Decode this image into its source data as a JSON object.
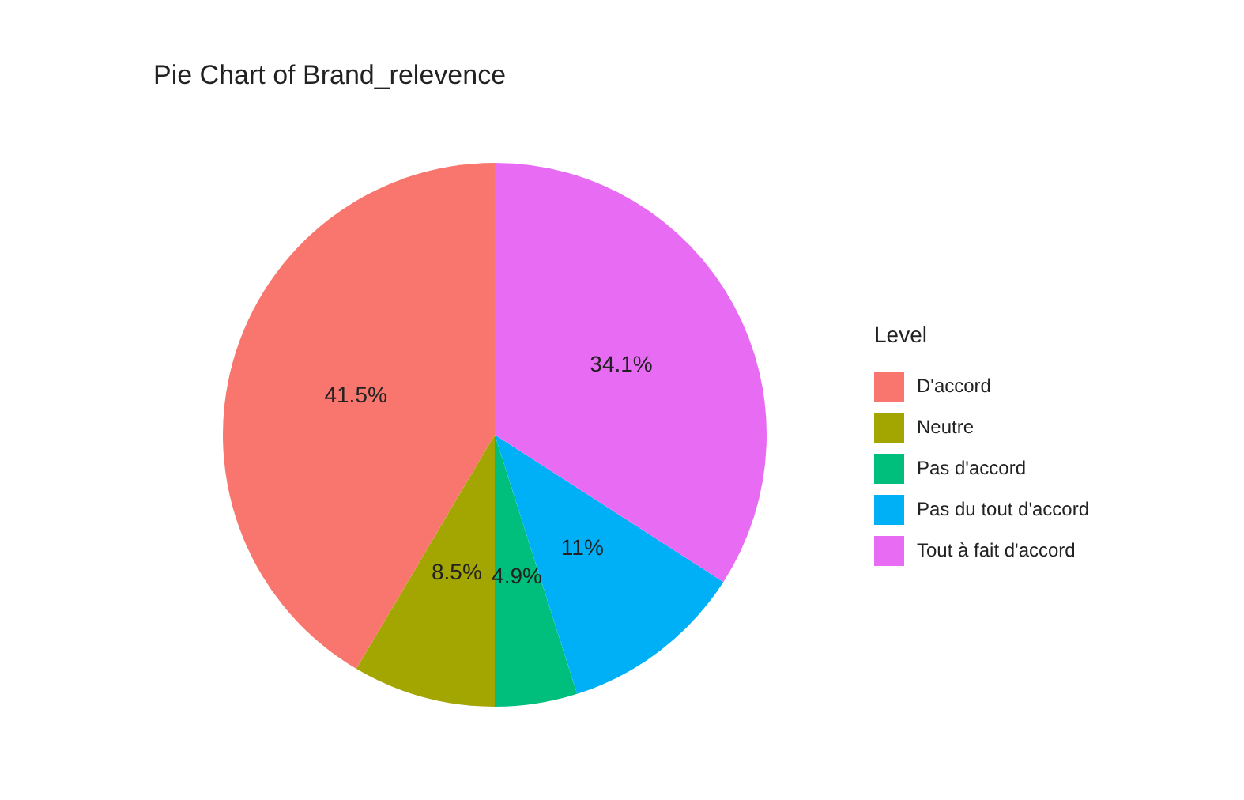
{
  "chart_data": {
    "type": "pie",
    "title": "Pie Chart of Brand_relevence",
    "legend_title": "Level",
    "legend": "right",
    "data_labels": true,
    "categories": [
      "D'accord",
      "Neutre",
      "Pas d'accord",
      "Pas du tout d'accord",
      "Tout à fait d'accord"
    ],
    "values": [
      41.5,
      8.5,
      4.9,
      11,
      34.1
    ],
    "value_labels": [
      "41.5%",
      "8.5%",
      "4.9%",
      "11%",
      "34.1%"
    ],
    "colors": [
      "#f8766d",
      "#a3a500",
      "#00bf7d",
      "#00b0f6",
      "#e76bf3"
    ]
  }
}
